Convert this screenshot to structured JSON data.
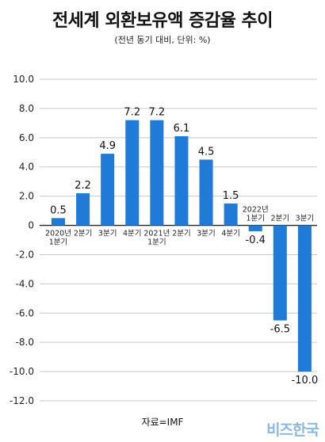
{
  "chart_data": {
    "type": "bar",
    "title": "전세계 외환보유액 증감율 추이",
    "subtitle": "(전년 동기 대비, 단위: %)",
    "categories": [
      [
        "2020년",
        "1분기"
      ],
      [
        "2분기"
      ],
      [
        "3분기"
      ],
      [
        "4분기"
      ],
      [
        "2021년",
        "1분기"
      ],
      [
        "2분기"
      ],
      [
        "3분기"
      ],
      [
        "4분기"
      ],
      [
        "2022년",
        "1분기"
      ],
      [
        "2분기"
      ],
      [
        "3분기"
      ]
    ],
    "values": [
      0.5,
      2.2,
      4.9,
      7.2,
      7.2,
      6.1,
      4.5,
      1.5,
      -0.4,
      -6.5,
      -10.0
    ],
    "value_labels": [
      "0.5",
      "2.2",
      "4.9",
      "7.2",
      "7.2",
      "6.1",
      "4.5",
      "1.5",
      "-0.4",
      "-6.5",
      "-10.0"
    ],
    "ylim": [
      -12.0,
      10.0
    ],
    "yticks": [
      "10.0",
      "8.0",
      "6.0",
      "4.0",
      "2.0",
      "0",
      "-2.0",
      "-4.0",
      "-6.0",
      "-8.0",
      "-10.0",
      "-12.0"
    ],
    "ytick_values": [
      10,
      8,
      6,
      4,
      2,
      0,
      -2,
      -4,
      -6,
      -8,
      -10,
      -12
    ],
    "grid": true,
    "bar_color": "#1f7ad8",
    "source": "자료=IMF"
  },
  "watermark": "비즈한국"
}
